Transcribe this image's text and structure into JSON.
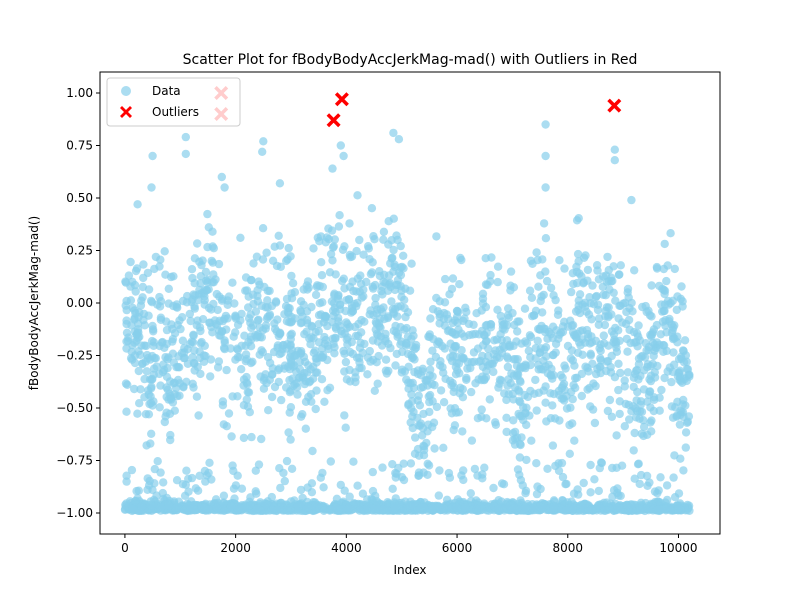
{
  "chart_data": {
    "type": "scatter",
    "title": "Scatter Plot for fBodyBodyAccJerkMag-mad() with Outliers in Red",
    "xlabel": "Index",
    "ylabel": "fBodyBodyAccJerkMag-mad()",
    "xlim": [
      -450,
      10750
    ],
    "ylim": [
      -1.1,
      1.1
    ],
    "xticks": [
      0,
      2000,
      4000,
      6000,
      8000,
      10000
    ],
    "xtick_labels": [
      "0",
      "2000",
      "4000",
      "6000",
      "8000",
      "10000"
    ],
    "yticks": [
      -1.0,
      -0.75,
      -0.5,
      -0.25,
      0.0,
      0.25,
      0.5,
      0.75,
      1.0
    ],
    "ytick_labels": [
      "−1.00",
      "−0.75",
      "−0.50",
      "−0.25",
      "0.00",
      "0.25",
      "0.50",
      "0.75",
      "1.00"
    ],
    "grid": false,
    "legend_placement": "upper-left",
    "n_points": 10299,
    "series": [
      {
        "name": "Data",
        "color": "#87CEEB",
        "marker": "circle",
        "segment_centers": [
          [
            0,
            -0.05
          ],
          [
            200,
            -0.1
          ],
          [
            400,
            -0.3
          ],
          [
            600,
            -0.1
          ],
          [
            800,
            -0.3
          ],
          [
            1000,
            -0.15
          ],
          [
            1200,
            -0.2
          ],
          [
            1400,
            0.0
          ],
          [
            1600,
            0.05
          ],
          [
            1800,
            -0.25
          ],
          [
            2000,
            -0.15
          ],
          [
            2200,
            -0.3
          ],
          [
            2400,
            -0.05
          ],
          [
            2600,
            -0.25
          ],
          [
            2800,
            -0.1
          ],
          [
            3000,
            -0.2
          ],
          [
            3200,
            -0.25
          ],
          [
            3400,
            -0.2
          ],
          [
            3600,
            -0.1
          ],
          [
            3800,
            0.05
          ],
          [
            4000,
            -0.1
          ],
          [
            4200,
            -0.05
          ],
          [
            4400,
            -0.05
          ],
          [
            4600,
            -0.05
          ],
          [
            4800,
            0.05
          ],
          [
            5000,
            0.0
          ],
          [
            5200,
            -0.4
          ],
          [
            5400,
            -0.55
          ],
          [
            5600,
            -0.25
          ],
          [
            5800,
            -0.2
          ],
          [
            6000,
            -0.2
          ],
          [
            6200,
            -0.25
          ],
          [
            6400,
            -0.3
          ],
          [
            6600,
            -0.15
          ],
          [
            6800,
            -0.2
          ],
          [
            7000,
            -0.3
          ],
          [
            7200,
            -0.45
          ],
          [
            7400,
            -0.2
          ],
          [
            7600,
            -0.1
          ],
          [
            7800,
            -0.3
          ],
          [
            8000,
            -0.3
          ],
          [
            8200,
            -0.05
          ],
          [
            8400,
            -0.15
          ],
          [
            8600,
            -0.05
          ],
          [
            8800,
            -0.1
          ],
          [
            9000,
            -0.15
          ],
          [
            9200,
            -0.35
          ],
          [
            9400,
            -0.4
          ],
          [
            9600,
            -0.2
          ],
          [
            9800,
            -0.05
          ],
          [
            10000,
            -0.3
          ],
          [
            10200,
            -0.35
          ]
        ],
        "baseline_value": -0.99,
        "baseline_fraction": 0.4,
        "sample_high_points": [
          [
            230,
            0.47
          ],
          [
            500,
            0.7
          ],
          [
            480,
            0.55
          ],
          [
            1100,
            0.79
          ],
          [
            1100,
            0.71
          ],
          [
            1750,
            0.6
          ],
          [
            1800,
            0.55
          ],
          [
            2500,
            0.77
          ],
          [
            2480,
            0.72
          ],
          [
            2800,
            0.57
          ],
          [
            3750,
            0.64
          ],
          [
            3900,
            0.75
          ],
          [
            3950,
            0.7
          ],
          [
            4850,
            0.81
          ],
          [
            4950,
            0.78
          ],
          [
            7600,
            0.85
          ],
          [
            7600,
            0.7
          ],
          [
            7600,
            0.55
          ],
          [
            8850,
            0.73
          ],
          [
            8850,
            0.68
          ],
          [
            9150,
            0.49
          ]
        ]
      },
      {
        "name": "Outliers",
        "color": "#FF0000",
        "marker": "x",
        "points": [
          [
            1740,
            1.0
          ],
          [
            1740,
            0.9
          ],
          [
            3770,
            0.87
          ],
          [
            3920,
            0.97
          ],
          [
            8840,
            0.94
          ]
        ]
      }
    ]
  }
}
